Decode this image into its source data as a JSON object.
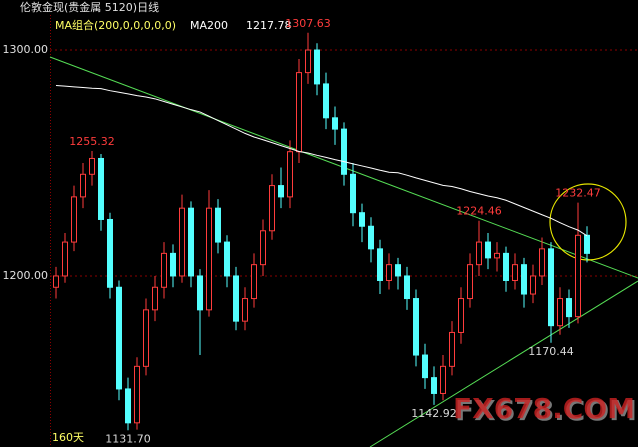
{
  "title": "伦敦金现(贵金属 5120)日线",
  "indicator": "MA组合(200,0,0,0,0,0)",
  "period_label": "160天",
  "watermark": "FX678.COM",
  "chart_data": {
    "type": "candlestick",
    "open": [
      1195,
      1200,
      1215,
      1235,
      1245,
      1252,
      1225,
      1195,
      1150,
      1135,
      1160,
      1185,
      1195,
      1210,
      1200,
      1230,
      1200,
      1185,
      1230,
      1215,
      1200,
      1180,
      1190,
      1205,
      1220,
      1240,
      1235,
      1255,
      1290,
      1300,
      1285,
      1270,
      1265,
      1245,
      1228,
      1222,
      1212,
      1198,
      1205,
      1200,
      1190,
      1165,
      1155,
      1148,
      1160,
      1175,
      1190,
      1205,
      1215,
      1208,
      1210,
      1198,
      1205,
      1192,
      1200,
      1212,
      1178,
      1190,
      1182,
      1218
    ],
    "high": [
      1204,
      1219,
      1240,
      1250,
      1255.32,
      1254,
      1228,
      1198,
      1155,
      1164,
      1190,
      1200,
      1215,
      1214,
      1236,
      1233,
      1203,
      1238,
      1234,
      1218,
      1204,
      1195,
      1210,
      1225,
      1245,
      1248,
      1260,
      1296,
      1307.63,
      1303,
      1290,
      1275,
      1268,
      1250,
      1232,
      1226,
      1216,
      1210,
      1208,
      1204,
      1194,
      1170,
      1160,
      1165,
      1180,
      1195,
      1210,
      1224.46,
      1219,
      1215,
      1213,
      1210,
      1208,
      1205,
      1217,
      1215,
      1195,
      1194,
      1232.47,
      1222
    ],
    "low": [
      1190,
      1197,
      1211,
      1230,
      1240,
      1220,
      1190,
      1145,
      1131.7,
      1132,
      1156,
      1180,
      1190,
      1195,
      1197,
      1195,
      1165,
      1182,
      1210,
      1195,
      1176,
      1176,
      1186,
      1200,
      1216,
      1230,
      1230,
      1250,
      1285,
      1280,
      1265,
      1258,
      1240,
      1222,
      1215,
      1206,
      1192,
      1194,
      1194,
      1185,
      1160,
      1150,
      1142.92,
      1145,
      1156,
      1170,
      1186,
      1200,
      1203,
      1202,
      1193,
      1194,
      1186,
      1188,
      1196,
      1170.44,
      1174,
      1177,
      1179,
      1206
    ],
    "close": [
      1200,
      1215,
      1235,
      1245,
      1252,
      1225,
      1195,
      1150,
      1135,
      1160,
      1185,
      1195,
      1210,
      1200,
      1230,
      1200,
      1185,
      1230,
      1215,
      1200,
      1180,
      1190,
      1205,
      1220,
      1240,
      1235,
      1255,
      1290,
      1300,
      1285,
      1270,
      1265,
      1245,
      1228,
      1222,
      1212,
      1198,
      1205,
      1200,
      1190,
      1165,
      1155,
      1148,
      1160,
      1175,
      1190,
      1205,
      1215,
      1208,
      1210,
      1198,
      1205,
      1192,
      1200,
      1212,
      1178,
      1190,
      1182,
      1218,
      1210
    ],
    "high_labels": [
      null,
      null,
      null,
      null,
      "1255.32",
      null,
      null,
      null,
      null,
      null,
      null,
      null,
      null,
      null,
      null,
      null,
      null,
      null,
      null,
      null,
      null,
      null,
      null,
      null,
      null,
      null,
      null,
      null,
      "1307.63",
      null,
      null,
      null,
      null,
      null,
      null,
      null,
      null,
      null,
      null,
      null,
      null,
      null,
      null,
      null,
      null,
      null,
      null,
      "1224.46",
      null,
      null,
      null,
      null,
      null,
      null,
      null,
      null,
      null,
      null,
      "1232.47",
      null
    ],
    "low_labels": [
      null,
      null,
      null,
      null,
      null,
      null,
      null,
      null,
      "1131.70",
      null,
      null,
      null,
      null,
      null,
      null,
      null,
      null,
      null,
      null,
      null,
      null,
      null,
      null,
      null,
      null,
      null,
      null,
      null,
      null,
      null,
      null,
      null,
      null,
      null,
      null,
      null,
      null,
      null,
      null,
      null,
      null,
      null,
      "1142.92",
      null,
      null,
      null,
      null,
      null,
      null,
      null,
      null,
      null,
      null,
      null,
      null,
      "1170.44",
      null,
      null,
      null,
      null
    ],
    "series": [
      {
        "name": "MA200",
        "color": "#ffffff",
        "values": [
          1284.3,
          1284,
          1283.7,
          1283.4,
          1283.1,
          1282.9,
          1282,
          1281.3,
          1280.6,
          1279.8,
          1279.2,
          1278.4,
          1277.2,
          1276,
          1274.8,
          1273.6,
          1272.6,
          1270.7,
          1268.8,
          1266.9,
          1265,
          1263.1,
          1261.5,
          1260.3,
          1259,
          1257.7,
          1256.4,
          1255.1,
          1254.4,
          1253.4,
          1252.5,
          1251.5,
          1250.6,
          1249.6,
          1248.7,
          1247.8,
          1246.8,
          1245.9,
          1245.7,
          1244.6,
          1243.4,
          1242.3,
          1241.2,
          1240.1,
          1239.6,
          1238.6,
          1237.4,
          1236.4,
          1235.4,
          1234.6,
          1233.5,
          1231.9,
          1230.3,
          1228.7,
          1227.1,
          1225.5,
          1223.6,
          1221.8,
          1220.3,
          1217.78
        ]
      }
    ],
    "ylim": [
      1124.3,
      1315.5
    ],
    "yticks": [
      {
        "value": 1200,
        "label": "1200.00"
      },
      {
        "value": 1300,
        "label": "1300.00"
      }
    ],
    "grid": true,
    "up_color": "#ff3c3c",
    "down_color": "#54ffff",
    "high_label_color": "#ff3c3c",
    "low_label_color": "#d8d8d8"
  }
}
